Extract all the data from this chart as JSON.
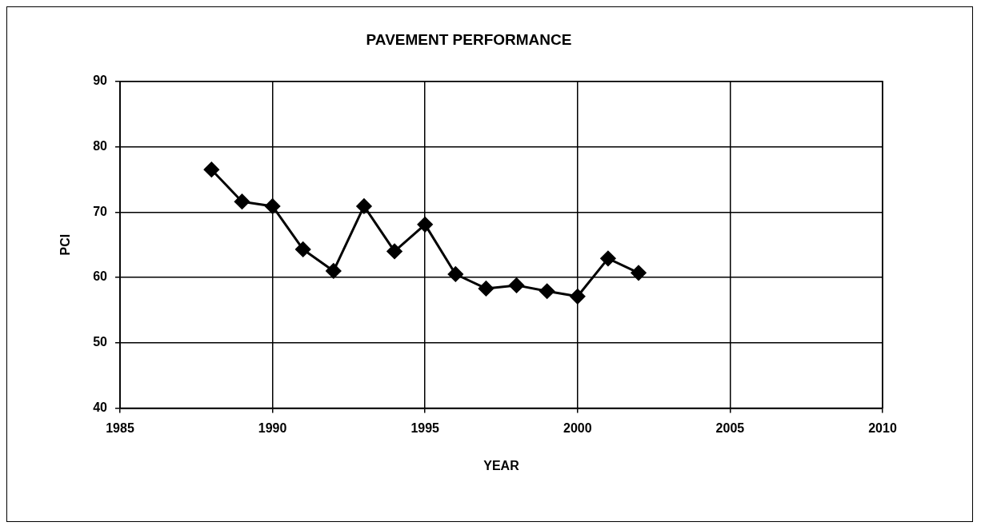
{
  "chart_data": {
    "type": "line",
    "title": "PAVEMENT PERFORMANCE",
    "xlabel": "YEAR",
    "ylabel": "PCI",
    "x": [
      1988,
      1989,
      1990,
      1991,
      1992,
      1993,
      1994,
      1995,
      1996,
      1997,
      1998,
      1999,
      2000,
      2001,
      2002
    ],
    "series": [
      {
        "color": "#000000",
        "values": [
          76.5,
          71.6,
          70.9,
          64.3,
          61.0,
          70.9,
          64.0,
          68.1,
          60.5,
          58.3,
          58.8,
          57.9,
          57.1,
          62.9,
          60.7
        ]
      }
    ],
    "xlim": [
      1985,
      2010
    ],
    "xticks": [
      1985,
      1990,
      1995,
      2000,
      2005,
      2010
    ],
    "ylim": [
      40,
      90
    ],
    "yticks": [
      40,
      50,
      60,
      70,
      80,
      90
    ],
    "grid": true,
    "legend": false,
    "marker": "diamond",
    "line_style": "solid"
  }
}
